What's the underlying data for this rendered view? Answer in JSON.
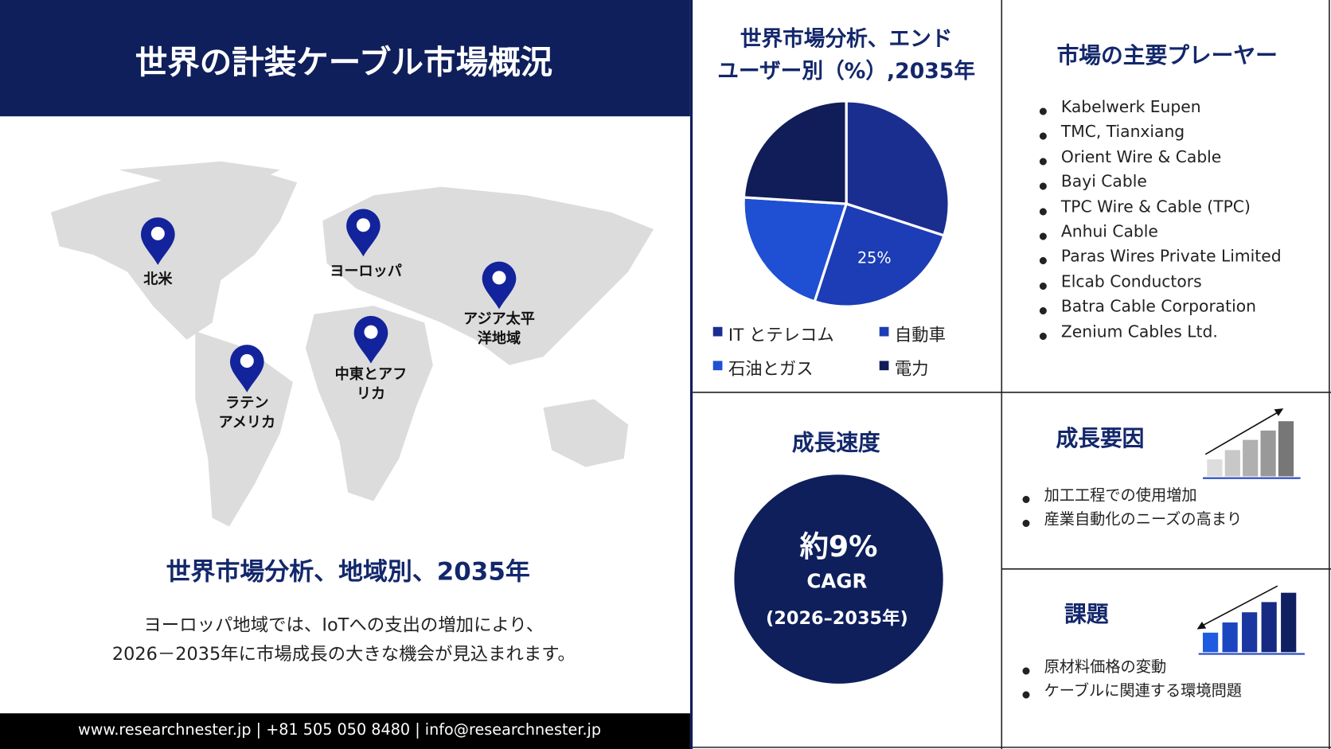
{
  "header": {
    "title": "世界の計装ケーブル市場概況"
  },
  "map": {
    "regions": [
      {
        "label": [
          "北米"
        ]
      },
      {
        "label": [
          "ヨーロッパ"
        ]
      },
      {
        "label": [
          "アジア太平",
          "洋地域"
        ]
      },
      {
        "label": [
          "中東とアフ",
          "リカ"
        ]
      },
      {
        "label": [
          "ラテン",
          "アメリカ"
        ]
      }
    ]
  },
  "region_section": {
    "title": "世界市場分析、地域別、2035年",
    "text": [
      "ヨーロッパ地域では、IoTへの支出の増加により、",
      "2026－2035年に市場成長の大きな機会が見込まれます。"
    ]
  },
  "footer": {
    "text": "www.researchnester.jp | +81 505 050 8480 | info@researchnester.jp"
  },
  "chart_data": {
    "type": "pie",
    "title": [
      "世界市場分析、エンド",
      "ユーザー別（%）,2035年"
    ],
    "categories": [
      "IT とテレコム",
      "自動車",
      "石油とガス",
      "電力"
    ],
    "values": [
      30,
      25,
      21,
      24
    ],
    "value_labels": [
      null,
      "25%",
      null,
      null
    ],
    "colors": [
      "#1a2e8f",
      "#1c3db5",
      "#1f4fd3",
      "#111d58"
    ]
  },
  "players": {
    "title": "市場の主要プレーヤー",
    "items": [
      "Kabelwerk Eupen",
      "TMC, Tianxiang",
      "Orient Wire & Cable",
      "Bayi Cable",
      "TPC Wire & Cable (TPC)",
      "Anhui Cable",
      "Paras Wires Private Limited",
      "Elcab Conductors",
      "Batra Cable Corporation",
      "Zenium Cables Ltd."
    ]
  },
  "growth_rate": {
    "title": "成長速度",
    "value": "約9%",
    "label": "CAGR",
    "period": "(2026–2035年)"
  },
  "drivers": {
    "title": "成長要因",
    "items": [
      "加工工程での使用増加",
      "産業自動化のニーズの高まり"
    ]
  },
  "challenges": {
    "title": "課題",
    "items": [
      "原材料価格の変動",
      "ケーブルに関連する環境問題"
    ]
  }
}
